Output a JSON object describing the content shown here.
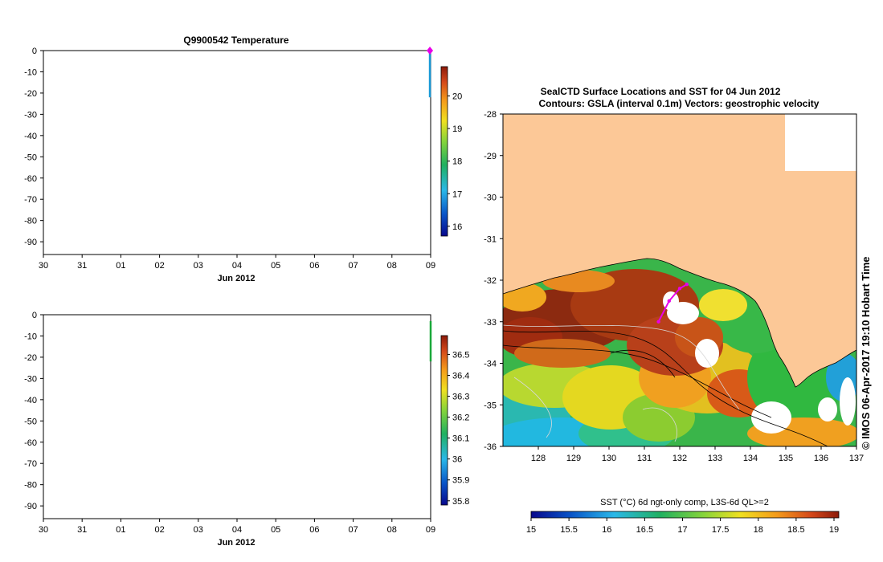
{
  "figure": {
    "stamp": "© IMOS 06-Apr-2017 19:10 Hobart Time"
  },
  "chart_data": [
    {
      "type": "line",
      "panel": "profile-top",
      "title": "Q9900542  Temperature",
      "xlabel": "Jun 2012",
      "x_ticks": [
        "30",
        "31",
        "01",
        "02",
        "03",
        "04",
        "05",
        "06",
        "07",
        "08",
        "09"
      ],
      "y_ticks": [
        0,
        -10,
        -20,
        -30,
        -40,
        -50,
        -60,
        -70,
        -80,
        -90
      ],
      "ylim": [
        -96,
        0
      ],
      "profile": {
        "x_index": 9.98,
        "depth_top": 0,
        "depth_bottom": -22
      },
      "surface_marker": {
        "x_index": 9.98,
        "depth": 0,
        "color": "#e800e8"
      },
      "colorbar": {
        "ticks": [
          16,
          17,
          18,
          19,
          20
        ],
        "range": [
          15.7,
          20.9
        ]
      }
    },
    {
      "type": "line",
      "panel": "profile-bottom",
      "title": "",
      "xlabel": "Jun 2012",
      "x_ticks": [
        "30",
        "31",
        "01",
        "02",
        "03",
        "04",
        "05",
        "06",
        "07",
        "08",
        "09"
      ],
      "y_ticks": [
        0,
        -10,
        -20,
        -30,
        -40,
        -50,
        -60,
        -70,
        -80,
        -90
      ],
      "ylim": [
        -96,
        0
      ],
      "profile": {
        "x_index": 10.0,
        "depth_top": -3,
        "depth_bottom": -22
      },
      "colorbar": {
        "ticks": [
          35.8,
          35.9,
          36,
          36.1,
          36.2,
          36.3,
          36.4,
          36.5
        ],
        "range": [
          35.78,
          36.59
        ]
      }
    },
    {
      "type": "heatmap",
      "panel": "sst-map",
      "title": "SealCTD Surface Locations and SST for 04 Jun 2012",
      "subtitle": "Contours: GSLA (interval 0.1m) Vectors: geostrophic velocity",
      "x_ticks": [
        128,
        129,
        130,
        131,
        132,
        133,
        134,
        135,
        136,
        137
      ],
      "y_ticks": [
        -28,
        -29,
        -30,
        -31,
        -32,
        -33,
        -34,
        -35,
        -36
      ],
      "xlim": [
        127,
        137
      ],
      "ylim": [
        -36,
        -28
      ],
      "land_color": "#fcc897",
      "track": [
        [
          131.4,
          -33.0
        ],
        [
          131.7,
          -32.5
        ],
        [
          132.0,
          -32.2
        ],
        [
          132.2,
          -32.1
        ]
      ],
      "track_color": "#e800e8",
      "colorbar": {
        "label": "SST (°C) 6d ngt-only comp, L3S-6d QL>=2",
        "ticks": [
          15,
          15.5,
          16,
          16.5,
          17,
          17.5,
          18,
          18.5,
          19
        ],
        "range": [
          15,
          19
        ]
      }
    }
  ]
}
